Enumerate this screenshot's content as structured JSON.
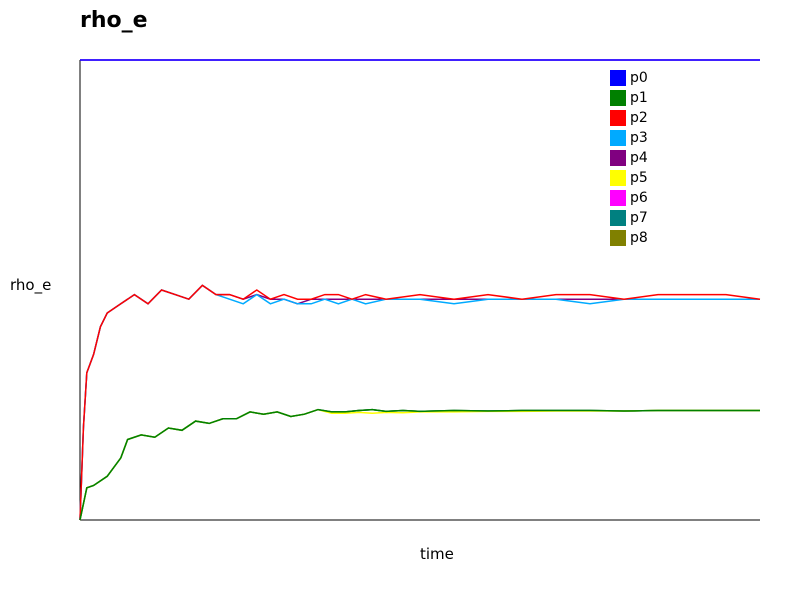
{
  "chart_data": {
    "type": "line",
    "title": "rho_e",
    "xlabel": "time",
    "ylabel": "rho_e",
    "legend_position": "top-right",
    "grid": false,
    "xlim": [
      0,
      200
    ],
    "ylim": [
      0,
      1
    ],
    "series": [
      {
        "name": "p0",
        "color": "#0000ff",
        "x": [
          0,
          200
        ],
        "y": [
          1.0,
          1.0
        ]
      },
      {
        "name": "p1",
        "color": "#008000",
        "x": [
          0,
          2,
          4,
          8,
          12,
          14,
          18,
          22,
          26,
          30,
          34,
          38,
          42,
          46,
          50,
          54,
          58,
          62,
          66,
          70,
          74,
          78,
          82,
          86,
          90,
          95,
          100,
          110,
          120,
          130,
          140,
          150,
          160,
          170,
          180,
          190,
          200
        ],
        "y": [
          0,
          0.07,
          0.075,
          0.095,
          0.135,
          0.175,
          0.185,
          0.18,
          0.2,
          0.195,
          0.215,
          0.21,
          0.22,
          0.22,
          0.235,
          0.23,
          0.235,
          0.225,
          0.23,
          0.24,
          0.235,
          0.235,
          0.238,
          0.24,
          0.236,
          0.238,
          0.236,
          0.238,
          0.237,
          0.238,
          0.238,
          0.238,
          0.237,
          0.238,
          0.238,
          0.238,
          0.238
        ]
      },
      {
        "name": "p2",
        "color": "#ff0000",
        "x": [
          0,
          1,
          2,
          4,
          6,
          8,
          12,
          16,
          20,
          24,
          28,
          32,
          36,
          40,
          44,
          48,
          52,
          56,
          60,
          64,
          68,
          72,
          76,
          80,
          84,
          90,
          100,
          110,
          120,
          130,
          140,
          150,
          160,
          170,
          180,
          190,
          200
        ],
        "y": [
          0,
          0.2,
          0.32,
          0.36,
          0.42,
          0.45,
          0.47,
          0.49,
          0.47,
          0.5,
          0.49,
          0.48,
          0.51,
          0.49,
          0.49,
          0.48,
          0.5,
          0.48,
          0.49,
          0.48,
          0.48,
          0.49,
          0.49,
          0.48,
          0.49,
          0.48,
          0.49,
          0.48,
          0.49,
          0.48,
          0.49,
          0.49,
          0.48,
          0.49,
          0.49,
          0.49,
          0.48
        ]
      },
      {
        "name": "p3",
        "color": "#00aaff",
        "x": [
          0,
          1,
          2,
          4,
          6,
          8,
          12,
          16,
          20,
          24,
          28,
          32,
          36,
          40,
          44,
          48,
          52,
          56,
          60,
          64,
          68,
          72,
          76,
          80,
          84,
          90,
          100,
          110,
          120,
          130,
          140,
          150,
          160,
          170,
          180,
          190,
          200
        ],
        "y": [
          0,
          0.2,
          0.32,
          0.36,
          0.42,
          0.45,
          0.47,
          0.49,
          0.47,
          0.5,
          0.49,
          0.48,
          0.51,
          0.49,
          0.48,
          0.47,
          0.49,
          0.47,
          0.48,
          0.47,
          0.47,
          0.48,
          0.47,
          0.48,
          0.47,
          0.48,
          0.48,
          0.47,
          0.48,
          0.48,
          0.48,
          0.47,
          0.48,
          0.48,
          0.48,
          0.48,
          0.48
        ]
      },
      {
        "name": "p4",
        "color": "#800080",
        "x": [
          0,
          1,
          2,
          4,
          6,
          8,
          12,
          16,
          20,
          24,
          28,
          32,
          36,
          40,
          44,
          48,
          52,
          56,
          60,
          64,
          68,
          72,
          76,
          80,
          84,
          90,
          100,
          110,
          120,
          130,
          140,
          150,
          160,
          170,
          180,
          190,
          200
        ],
        "y": [
          0,
          0.2,
          0.32,
          0.36,
          0.42,
          0.45,
          0.47,
          0.49,
          0.47,
          0.5,
          0.49,
          0.48,
          0.51,
          0.49,
          0.49,
          0.48,
          0.49,
          0.48,
          0.48,
          0.47,
          0.48,
          0.48,
          0.48,
          0.48,
          0.48,
          0.48,
          0.48,
          0.48,
          0.48,
          0.48,
          0.48,
          0.48,
          0.48,
          0.48,
          0.48,
          0.48,
          0.48
        ]
      },
      {
        "name": "p5",
        "color": "#ffff00",
        "x": [
          0,
          2,
          4,
          8,
          12,
          14,
          18,
          22,
          26,
          30,
          34,
          38,
          42,
          46,
          50,
          54,
          58,
          62,
          66,
          70,
          74,
          78,
          82,
          86,
          90,
          95,
          100,
          110,
          120,
          130,
          140,
          150,
          160,
          170,
          180,
          190,
          200
        ],
        "y": [
          0,
          0.07,
          0.075,
          0.095,
          0.135,
          0.175,
          0.185,
          0.18,
          0.2,
          0.195,
          0.215,
          0.21,
          0.22,
          0.22,
          0.235,
          0.23,
          0.235,
          0.225,
          0.23,
          0.24,
          0.232,
          0.232,
          0.234,
          0.232,
          0.234,
          0.233,
          0.235,
          0.235,
          0.236,
          0.236,
          0.237,
          0.237,
          0.237,
          0.238,
          0.238,
          0.238,
          0.238
        ]
      },
      {
        "name": "p6",
        "color": "#ff00ff",
        "x": [
          0,
          200
        ],
        "y": [
          1.0,
          1.0
        ]
      },
      {
        "name": "p7",
        "color": "#008080",
        "x": [
          0,
          2,
          4,
          8,
          12,
          14,
          18,
          22,
          26,
          30,
          34,
          38,
          42,
          46,
          50,
          54,
          58,
          62,
          66,
          70,
          74,
          78,
          82,
          86,
          90,
          95,
          100,
          110,
          120,
          130,
          140,
          150,
          160,
          170,
          180,
          190,
          200
        ],
        "y": [
          0,
          0.07,
          0.075,
          0.095,
          0.135,
          0.175,
          0.185,
          0.18,
          0.2,
          0.195,
          0.215,
          0.21,
          0.22,
          0.22,
          0.235,
          0.23,
          0.235,
          0.225,
          0.23,
          0.24,
          0.235,
          0.235,
          0.238,
          0.24,
          0.236,
          0.238,
          0.236,
          0.238,
          0.237,
          0.238,
          0.238,
          0.238,
          0.237,
          0.238,
          0.238,
          0.238,
          0.238
        ]
      },
      {
        "name": "p8",
        "color": "#808000",
        "x": [
          0,
          2,
          4,
          8,
          12,
          14,
          18,
          22,
          26,
          30,
          34,
          38,
          42,
          46,
          50,
          54,
          58,
          62,
          66,
          70,
          74,
          78,
          82,
          86,
          90,
          95,
          100,
          110,
          120,
          130,
          140,
          150,
          160,
          170,
          180,
          190,
          200
        ],
        "y": [
          0,
          0.07,
          0.075,
          0.095,
          0.135,
          0.175,
          0.185,
          0.18,
          0.2,
          0.195,
          0.215,
          0.21,
          0.22,
          0.22,
          0.235,
          0.23,
          0.235,
          0.225,
          0.23,
          0.24,
          0.235,
          0.235,
          0.238,
          0.24,
          0.236,
          0.238,
          0.236,
          0.238,
          0.237,
          0.238,
          0.238,
          0.238,
          0.237,
          0.238,
          0.238,
          0.238,
          0.238
        ]
      }
    ]
  }
}
